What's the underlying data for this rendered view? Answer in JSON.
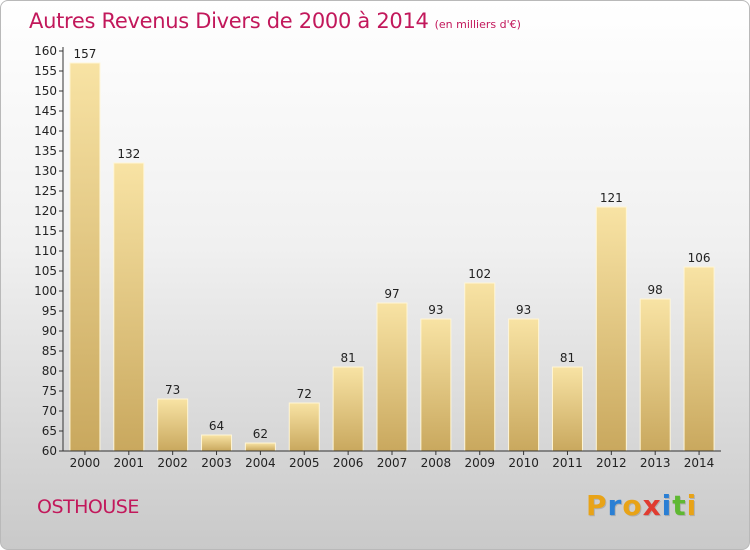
{
  "header": {
    "title": "Autres Revenus Divers de 2000 à 2014",
    "unit": "(en milliers d'€)"
  },
  "footer": {
    "location": "OSTHOUSE",
    "brand": "Proxiti",
    "brand_colors": [
      "#e8a317",
      "#2a7fd4",
      "#e8a317",
      "#e03c31",
      "#2a7fd4",
      "#5fb832",
      "#e8a317"
    ]
  },
  "chart_data": {
    "type": "bar",
    "categories": [
      "2000",
      "2001",
      "2002",
      "2003",
      "2004",
      "2005",
      "2006",
      "2007",
      "2008",
      "2009",
      "2010",
      "2011",
      "2012",
      "2013",
      "2014"
    ],
    "values": [
      157,
      132,
      73,
      64,
      62,
      72,
      81,
      97,
      93,
      102,
      93,
      81,
      121,
      98,
      106
    ],
    "data_labels": [
      "157",
      "132",
      "73",
      "64",
      "62",
      "72",
      "81",
      "97",
      "93",
      "102",
      "93",
      "81",
      "121",
      "98",
      "106"
    ],
    "y_ticks": [
      "60",
      "65",
      "70",
      "75",
      "80",
      "85",
      "90",
      "95",
      "100",
      "105",
      "110",
      "115",
      "120",
      "125",
      "130",
      "135",
      "140",
      "145",
      "150",
      "155",
      "160"
    ],
    "ylim": [
      60,
      160
    ],
    "grid": false,
    "title": "Autres Revenus Divers de 2000 à 2014",
    "xlabel": "",
    "ylabel": "",
    "colors": {
      "bar_light": "#f8e3a4",
      "bar_dark": "#c9a85e",
      "axis": "#333333",
      "text": "#222222",
      "accent": "#c2185b"
    }
  }
}
